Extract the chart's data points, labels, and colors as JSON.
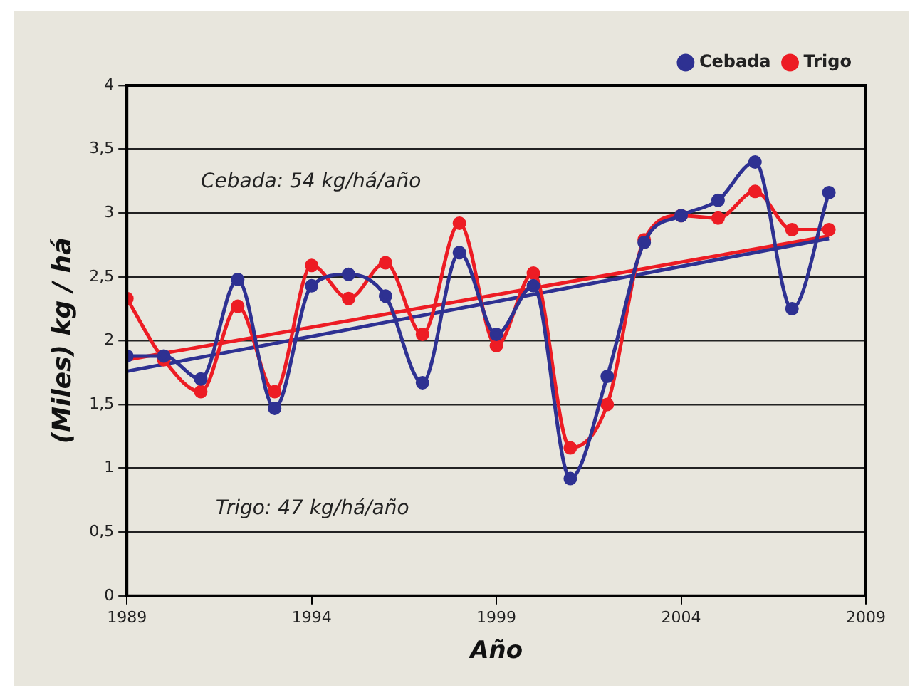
{
  "chart_data": {
    "type": "line",
    "xlabel": "Año",
    "ylabel": "(Miles) kg / há",
    "x": [
      1989,
      1990,
      1991,
      1992,
      1993,
      1994,
      1995,
      1996,
      1997,
      1998,
      1999,
      2000,
      2001,
      2002,
      2003,
      2004,
      2005,
      2006,
      2007,
      2008
    ],
    "series": [
      {
        "name": "Cebada",
        "color": "#2e3192",
        "marker": "circle",
        "values": [
          1.88,
          1.88,
          1.7,
          2.48,
          1.47,
          2.43,
          2.52,
          2.35,
          1.67,
          2.69,
          2.05,
          2.43,
          0.92,
          1.72,
          2.77,
          2.98,
          3.1,
          3.4,
          2.25,
          3.16
        ]
      },
      {
        "name": "Trigo",
        "color": "#ed1c24",
        "marker": "circle",
        "values": [
          2.33,
          1.85,
          1.6,
          2.27,
          1.6,
          2.59,
          2.33,
          2.61,
          2.05,
          2.92,
          1.96,
          2.53,
          1.16,
          1.5,
          2.79,
          2.98,
          2.96,
          3.17,
          2.87,
          2.87
        ]
      },
      {
        "type": "line",
        "color": "#2e3192",
        "marker": "none",
        "values": [
          1.76,
          null,
          null,
          null,
          null,
          null,
          null,
          null,
          null,
          null,
          null,
          null,
          null,
          null,
          null,
          null,
          null,
          null,
          null,
          2.8
        ]
      },
      {
        "type": "line",
        "color": "#ed1c24",
        "marker": "none",
        "values": [
          1.85,
          null,
          null,
          null,
          null,
          null,
          null,
          null,
          null,
          null,
          null,
          null,
          null,
          null,
          null,
          null,
          null,
          null,
          null,
          2.82
        ]
      }
    ],
    "xlim": [
      1989,
      2009
    ],
    "xticks": [
      1989,
      1994,
      1999,
      2004,
      2009
    ],
    "ylim": [
      0,
      4
    ],
    "yticks": [
      0,
      {
        "value": 0.5,
        "label": "0,5"
      },
      1,
      {
        "value": 1.5,
        "label": "1,5"
      },
      2,
      {
        "value": 2.5,
        "label": "2,5"
      },
      3,
      {
        "value": 3.5,
        "label": "3,5"
      },
      4
    ],
    "grid": "y",
    "legend": "top right",
    "annotations": [
      "Cebada: 54 kg/há/año",
      "Trigo: 47 kg/há/año"
    ]
  }
}
